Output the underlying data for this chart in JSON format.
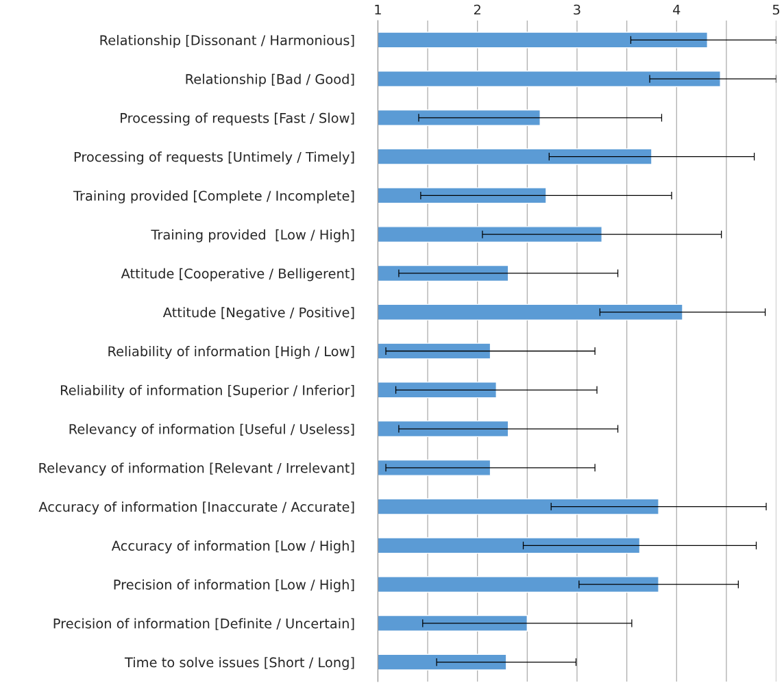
{
  "chart_data": {
    "type": "bar",
    "orientation": "horizontal",
    "grid": "x",
    "categories": [
      "Relationship [Dissonant / Harmonious]",
      "Relationship [Bad / Good]",
      "Processing of requests [Fast / Slow]",
      "Processing of requests [Untimely / Timely]",
      "Training provided [Complete / Incomplete]",
      "Training provided  [Low / High]",
      "Attitude [Cooperative / Belligerent]",
      "Attitude [Negative / Positive]",
      "Reliability of information [High / Low]",
      "Reliability of information [Superior / Inferior]",
      "Relevancy of information [Useful / Useless]",
      "Relevancy of information [Relevant / Irrelevant]",
      "Accuracy of information [Inaccurate / Accurate]",
      "Accuracy of information [Low / High]",
      "Precision of information [Low / High]",
      "Precision of information [Definite / Uncertain]",
      "Time to solve issues [Short / Long]"
    ],
    "values": [
      4.31,
      4.44,
      2.63,
      3.75,
      2.69,
      3.25,
      2.31,
      4.06,
      2.13,
      2.19,
      2.31,
      2.13,
      3.82,
      3.63,
      3.82,
      2.5,
      2.29
    ],
    "errors": [
      [
        3.54,
        5
      ],
      [
        3.73,
        5
      ],
      1.22,
      1.03,
      1.26,
      1.2,
      1.1,
      0.83,
      1.05,
      1.01,
      1.1,
      1.05,
      1.08,
      1.17,
      0.8,
      1.05,
      0.7
    ],
    "color": "#5b9bd5",
    "xlim": [
      1,
      5
    ],
    "xticks": [
      1,
      {
        "value": 1.5,
        "label": null
      },
      2,
      {
        "value": 2.5,
        "label": null
      },
      3,
      {
        "value": 3.5,
        "label": null
      },
      4,
      {
        "value": 4.5,
        "label": null
      },
      5
    ]
  }
}
